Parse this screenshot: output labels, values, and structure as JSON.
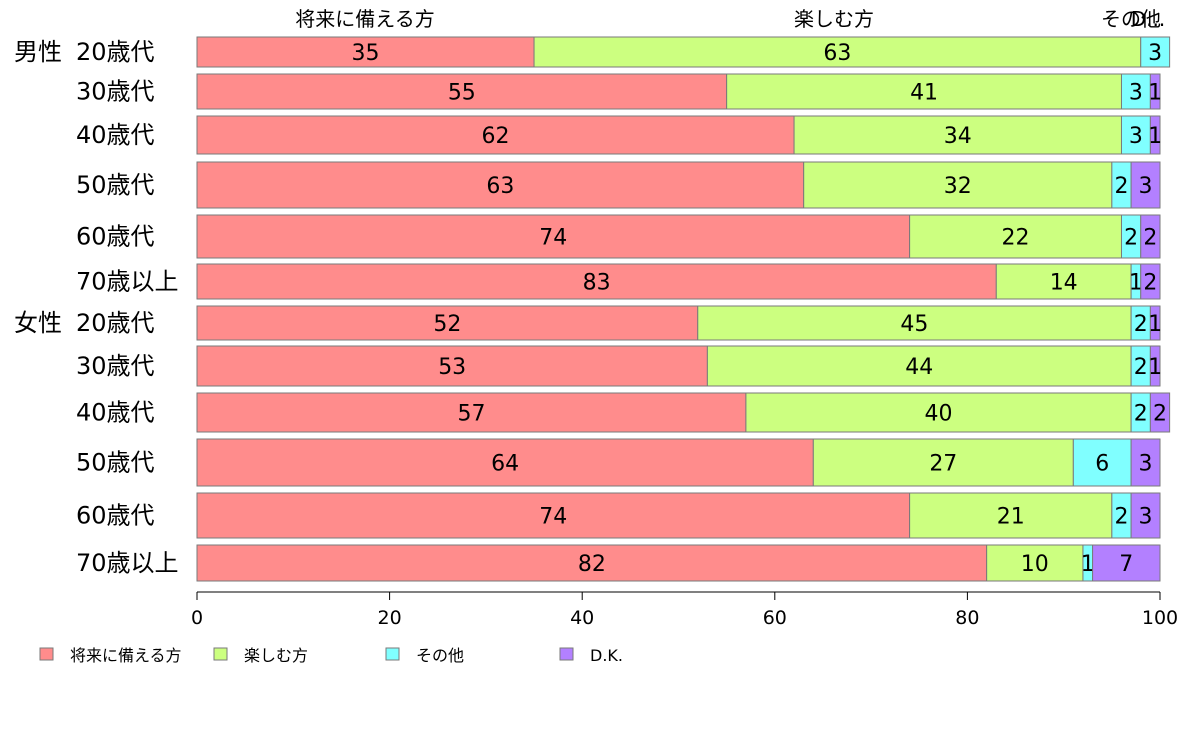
{
  "chart_data": {
    "type": "bar",
    "orientation": "horizontal",
    "stacked": true,
    "xlim": [
      0,
      100
    ],
    "x_ticks": [
      "0",
      "20",
      "40",
      "60",
      "80",
      "100"
    ],
    "top_category_labels": [
      "将来に備える方",
      "楽しむ方",
      "その他",
      "D..."
    ],
    "gender_labels": [
      "男性",
      "女性"
    ],
    "categories": [
      "20歳代",
      "30歳代",
      "40歳代",
      "50歳代",
      "60歳代",
      "70歳以上",
      "20歳代",
      "30歳代",
      "40歳代",
      "50歳代",
      "60歳代",
      "70歳以上"
    ],
    "series": [
      {
        "name": "将来に備える方",
        "color": "#ff8c8c",
        "values": [
          35,
          55,
          62,
          63,
          74,
          83,
          52,
          53,
          57,
          64,
          74,
          82
        ]
      },
      {
        "name": "楽しむ方",
        "color": "#ccff80",
        "values": [
          63,
          41,
          34,
          32,
          22,
          14,
          45,
          44,
          40,
          27,
          21,
          10
        ]
      },
      {
        "name": "その他",
        "color": "#80ffff",
        "values": [
          3,
          3,
          3,
          2,
          2,
          1,
          2,
          2,
          2,
          6,
          2,
          1
        ]
      },
      {
        "name": "D.K.",
        "color": "#b380ff",
        "values": [
          0,
          1,
          1,
          3,
          2,
          2,
          1,
          1,
          2,
          3,
          3,
          7
        ]
      }
    ],
    "legend": {
      "placement": "bottom-left",
      "entries": [
        "将来に備える方",
        "楽しむ方",
        "その他",
        "D.K."
      ]
    },
    "grid": false
  }
}
